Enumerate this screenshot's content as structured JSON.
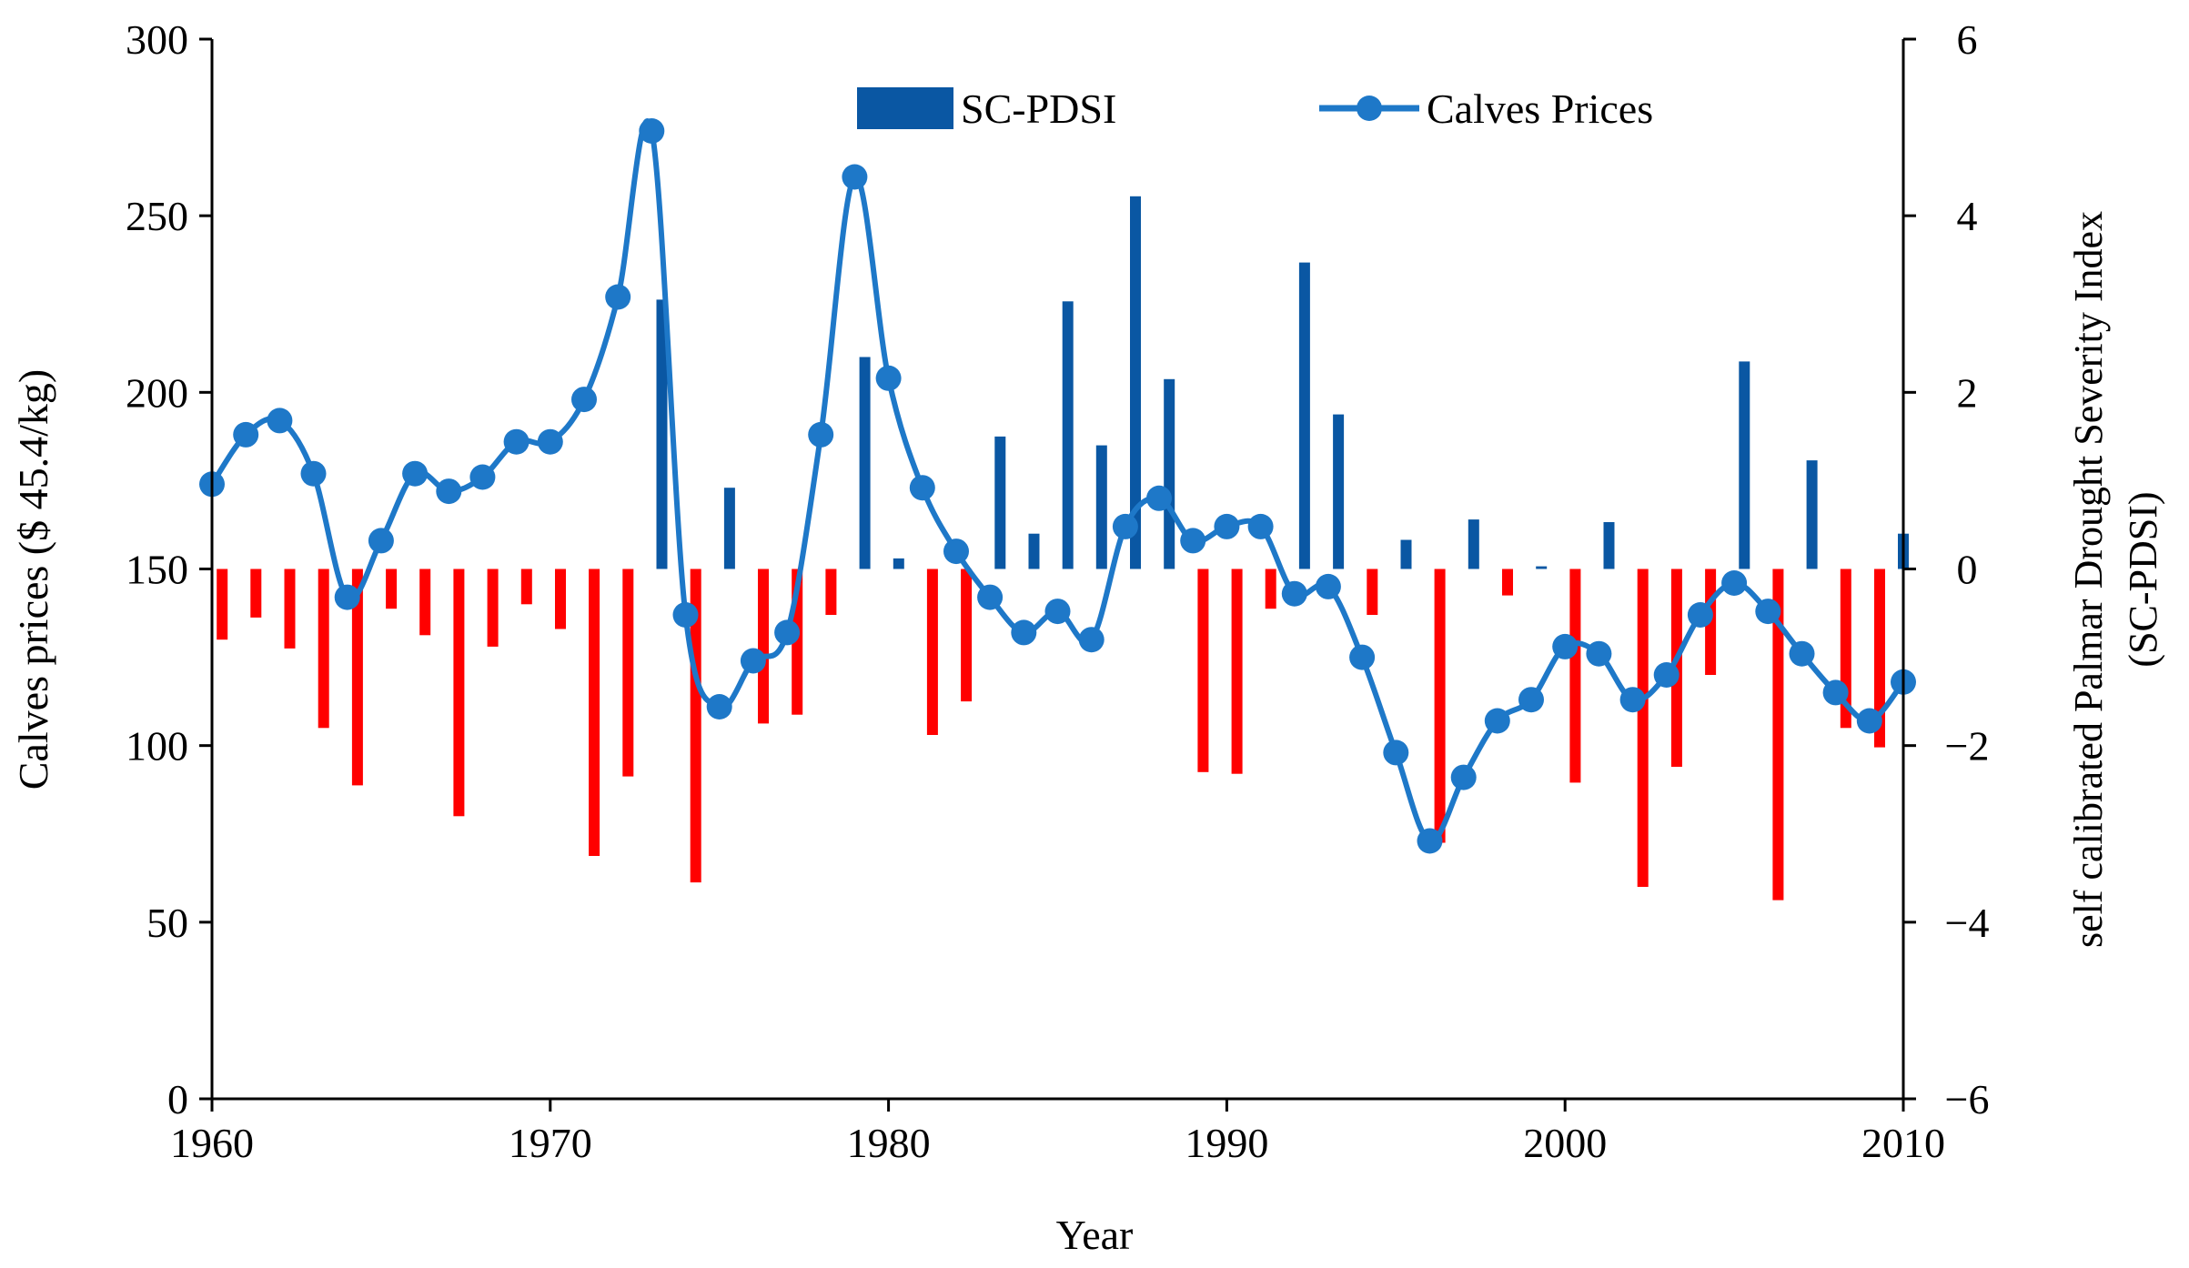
{
  "chart_data": {
    "type": "bar+line",
    "xlabel": "Year",
    "ylabel_left": "Calves prices ($ 45.4/kg)",
    "ylabel_right_line1": "self calibrated Palmar Drought Severity Index",
    "ylabel_right_line2": "(SC-PDSI)",
    "xlim": [
      1960,
      2010
    ],
    "ylim_left": [
      0,
      300
    ],
    "ylim_right": [
      -6,
      6
    ],
    "x_ticks": [
      1960,
      1970,
      1980,
      1990,
      2000,
      2010
    ],
    "y_left_ticks": [
      0,
      50,
      100,
      150,
      200,
      250,
      300
    ],
    "y_right_ticks": [
      {
        "value": -6,
        "label": "−6"
      },
      {
        "value": -4,
        "label": "−4"
      },
      {
        "value": -2,
        "label": "−2"
      },
      {
        "value": 0,
        "label": "0"
      },
      {
        "value": 2,
        "label": "2"
      },
      {
        "value": 4,
        "label": "4"
      },
      {
        "value": 6,
        "label": "6"
      }
    ],
    "legend_position": "top-center",
    "colors": {
      "positive_bar": "#0a57a3",
      "negative_bar": "#ff0000",
      "line": "#1e78c8"
    },
    "series": [
      {
        "name": "SC-PDSI",
        "axis": "right",
        "kind": "bar",
        "points": [
          [
            1960.3,
            -0.8
          ],
          [
            1961.3,
            -0.55
          ],
          [
            1962.3,
            -0.9
          ],
          [
            1963.3,
            -1.8
          ],
          [
            1964.3,
            -2.45
          ],
          [
            1965.3,
            -0.45
          ],
          [
            1966.3,
            -0.75
          ],
          [
            1967.3,
            -2.8
          ],
          [
            1968.3,
            -0.88
          ],
          [
            1969.3,
            -0.4
          ],
          [
            1970.3,
            -0.68
          ],
          [
            1971.3,
            -3.25
          ],
          [
            1972.3,
            -2.35
          ],
          [
            1973.3,
            3.05
          ],
          [
            1974.3,
            -3.55
          ],
          [
            1975.3,
            0.92
          ],
          [
            1976.3,
            -1.75
          ],
          [
            1977.3,
            -1.65
          ],
          [
            1978.3,
            -0.52
          ],
          [
            1979.3,
            2.4
          ],
          [
            1980.3,
            0.12
          ],
          [
            1981.3,
            -1.88
          ],
          [
            1982.3,
            -1.5
          ],
          [
            1983.3,
            1.5
          ],
          [
            1984.3,
            0.4
          ],
          [
            1985.3,
            3.03
          ],
          [
            1986.3,
            1.4
          ],
          [
            1987.3,
            4.22
          ],
          [
            1988.3,
            2.15
          ],
          [
            1989.3,
            -2.3
          ],
          [
            1990.3,
            -2.32
          ],
          [
            1991.3,
            -0.45
          ],
          [
            1992.3,
            3.47
          ],
          [
            1993.3,
            1.75
          ],
          [
            1994.3,
            -0.52
          ],
          [
            1995.3,
            0.33
          ],
          [
            1996.3,
            -3.1
          ],
          [
            1997.3,
            0.56
          ],
          [
            1998.3,
            -0.3
          ],
          [
            1999.3,
            0.03
          ],
          [
            2000.3,
            -2.42
          ],
          [
            2001.3,
            0.53
          ],
          [
            2002.3,
            -3.6
          ],
          [
            2003.3,
            -2.24
          ],
          [
            2004.3,
            -1.2
          ],
          [
            2005.3,
            2.35
          ],
          [
            2006.3,
            -3.75
          ],
          [
            2007.3,
            1.23
          ],
          [
            2008.3,
            -1.8
          ],
          [
            2009.3,
            -2.02
          ],
          [
            2010.0,
            0.4
          ]
        ]
      },
      {
        "name": "Calves Prices",
        "axis": "left",
        "kind": "line",
        "points": [
          [
            1960,
            174
          ],
          [
            1961,
            188
          ],
          [
            1962,
            192
          ],
          [
            1963,
            177
          ],
          [
            1964,
            142
          ],
          [
            1965,
            158
          ],
          [
            1966,
            177
          ],
          [
            1967,
            172
          ],
          [
            1968,
            176
          ],
          [
            1969,
            186
          ],
          [
            1970,
            186
          ],
          [
            1971,
            198
          ],
          [
            1972,
            227
          ],
          [
            1973,
            274
          ],
          [
            1974,
            137
          ],
          [
            1975,
            111
          ],
          [
            1976,
            124
          ],
          [
            1977,
            132
          ],
          [
            1978,
            188
          ],
          [
            1979,
            261
          ],
          [
            1980,
            204
          ],
          [
            1981,
            173
          ],
          [
            1982,
            155
          ],
          [
            1983,
            142
          ],
          [
            1984,
            132
          ],
          [
            1985,
            138
          ],
          [
            1986,
            130
          ],
          [
            1987,
            162
          ],
          [
            1988,
            170
          ],
          [
            1989,
            158
          ],
          [
            1990,
            162
          ],
          [
            1991,
            162
          ],
          [
            1992,
            143
          ],
          [
            1993,
            145
          ],
          [
            1994,
            125
          ],
          [
            1995,
            98
          ],
          [
            1996,
            73
          ],
          [
            1997,
            91
          ],
          [
            1998,
            107
          ],
          [
            1999,
            113
          ],
          [
            2000,
            128
          ],
          [
            2001,
            126
          ],
          [
            2002,
            113
          ],
          [
            2003,
            120
          ],
          [
            2004,
            137
          ],
          [
            2005,
            146
          ],
          [
            2006,
            138
          ],
          [
            2007,
            126
          ],
          [
            2008,
            115
          ],
          [
            2009,
            107
          ],
          [
            2010,
            118
          ]
        ]
      }
    ]
  }
}
